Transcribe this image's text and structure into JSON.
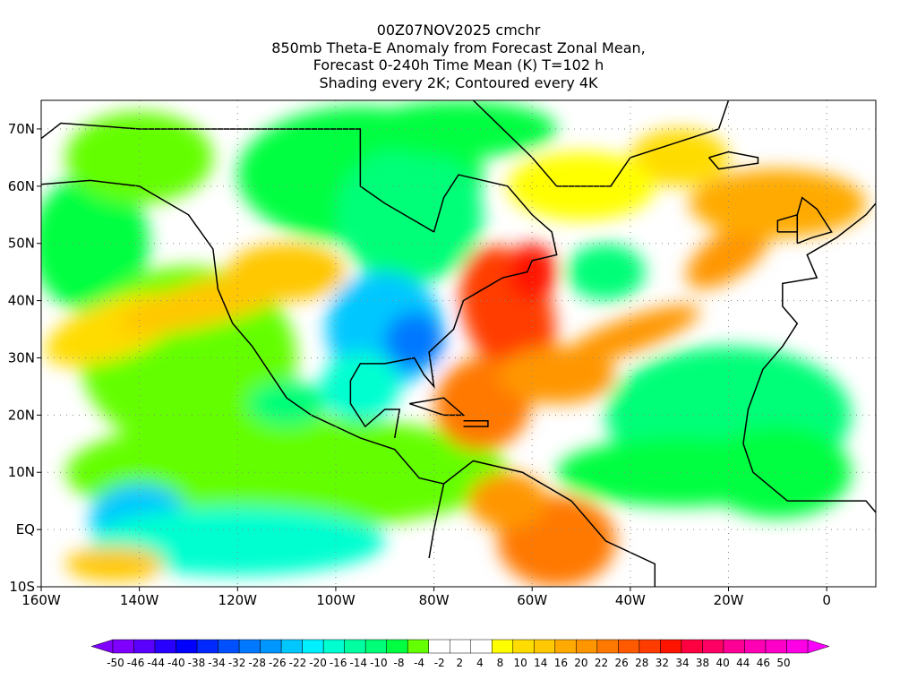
{
  "title": {
    "line1": "00Z07NOV2025 cmchr",
    "line2": "850mb Theta-E Anomaly from Forecast Zonal Mean,",
    "line3": "Forecast 0-240h Time Mean (K) T=102 h",
    "line4": "Shading every 2K; Contoured every 4K"
  },
  "axes": {
    "lon_labels": [
      "160W",
      "140W",
      "120W",
      "100W",
      "80W",
      "60W",
      "40W",
      "20W",
      "0"
    ],
    "lon_values": [
      -160,
      -140,
      -120,
      -100,
      -80,
      -60,
      -40,
      -20,
      0
    ],
    "lat_labels": [
      "70N",
      "60N",
      "50N",
      "40N",
      "30N",
      "20N",
      "10N",
      "EQ",
      "10S"
    ],
    "lat_values": [
      70,
      60,
      50,
      40,
      30,
      20,
      10,
      0,
      -10
    ],
    "lon_range": [
      -160,
      10
    ],
    "lat_range": [
      -10,
      75
    ]
  },
  "colorbar": {
    "labels": [
      "-50",
      "-46",
      "-44",
      "-40",
      "-38",
      "-34",
      "-32",
      "-28",
      "-26",
      "-22",
      "-20",
      "-16",
      "-14",
      "-10",
      "-8",
      "-4",
      "-2",
      "2",
      "4",
      "8",
      "10",
      "14",
      "16",
      "20",
      "22",
      "26",
      "28",
      "32",
      "34",
      "38",
      "40",
      "44",
      "46",
      "50"
    ],
    "colors": [
      "#7f00ff",
      "#5a00ff",
      "#2800ff",
      "#0000ff",
      "#0028ff",
      "#0050ff",
      "#0078ff",
      "#0096ff",
      "#00c8ff",
      "#00f0ff",
      "#00ffd0",
      "#00ffa0",
      "#00ff78",
      "#00ff40",
      "#64ff00",
      "#ffffff",
      "#ffffff",
      "#ffffff",
      "#ffff00",
      "#ffdc00",
      "#ffc800",
      "#ffaa00",
      "#ff9600",
      "#ff7800",
      "#ff5a00",
      "#ff3c00",
      "#ff1400",
      "#ff0040",
      "#ff0064",
      "#ff0096",
      "#ff00b4",
      "#ff00c8",
      "#ff00e6"
    ],
    "arrow_low": "#8000ff",
    "arrow_high": "#ff00ff"
  }
}
